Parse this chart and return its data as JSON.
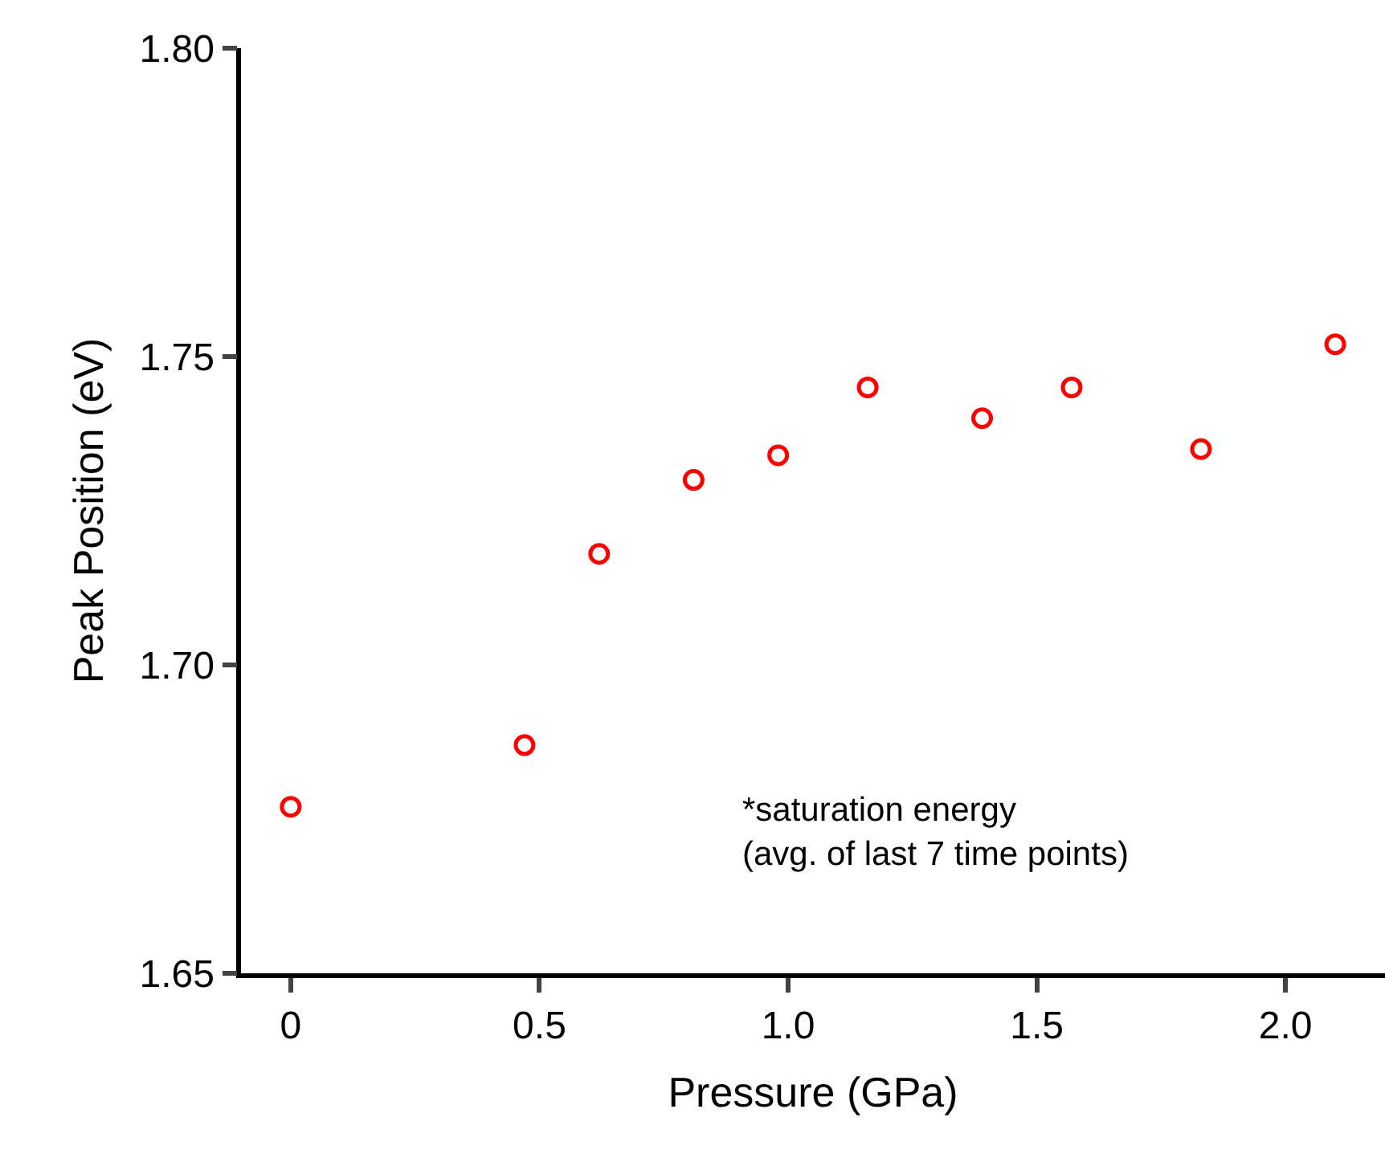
{
  "chart_data": {
    "type": "scatter",
    "xlabel": "Pressure (GPa)",
    "ylabel": "Peak Position (eV)",
    "x": [
      0,
      0.47,
      0.62,
      0.81,
      0.98,
      1.16,
      1.39,
      1.57,
      1.83,
      2.1
    ],
    "series": [
      {
        "color": "#ff0000",
        "values": [
          1.677,
          1.687,
          1.718,
          1.73,
          1.734,
          1.745,
          1.74,
          1.745,
          1.735,
          1.752
        ]
      }
    ],
    "xlim": [
      -0.1,
      2.2
    ],
    "ylim": [
      1.65,
      1.8
    ],
    "xticks": [
      {
        "value": 0,
        "label": "0"
      },
      0.5,
      {
        "value": 1,
        "label": "1.0"
      },
      1.5,
      {
        "value": 2,
        "label": "2.0"
      }
    ],
    "yticks": [
      {
        "value": 1.65,
        "label": "1.65"
      },
      {
        "value": 1.7,
        "label": "1.70"
      },
      {
        "value": 1.75,
        "label": "1.75"
      },
      {
        "value": 1.8,
        "label": "1.80"
      }
    ],
    "annotations": [
      "*saturation energy\n(avg. of last 7 time points)"
    ],
    "marker": "circle",
    "grid": false,
    "legend": false
  }
}
